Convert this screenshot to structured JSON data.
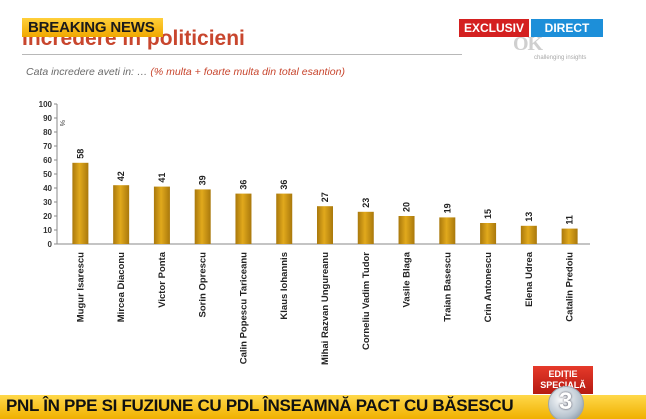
{
  "overlay": {
    "breaking": "BREAKING NEWS",
    "exclusiv": "EXCLUSIV",
    "direct": "DIRECT",
    "logo": "OK",
    "logo_tagline": "challenging insights",
    "edition_line1": "EDIȚIE",
    "edition_line2": "SPECIALĂ",
    "ticker": "PNL ÎN PPE SI FUZIUNE CU PDL ÎNSEAMNĂ PACT CU BĂSESCU",
    "channel_number": "3"
  },
  "colors": {
    "bar": "#e1a91c",
    "bar_dark": "#a9780c",
    "title": "#c8462e",
    "breaking": "#f5b700",
    "exclusiv": "#d42020",
    "direct": "#1d8fd9"
  },
  "chart_data": {
    "type": "bar",
    "title": "Incredere in politicieni",
    "subtitle_lead": "Cata incredere aveti in: …",
    "subtitle_paren": "(% multa + foarte multa din  total esantion)",
    "ylabel": "%",
    "ylim": [
      0,
      100
    ],
    "yticks": [
      0,
      10,
      20,
      30,
      40,
      50,
      60,
      70,
      80,
      90,
      100
    ],
    "grid": false,
    "legend": "none",
    "categories": [
      "Mugur Isarescu",
      "Mircea Diaconu",
      "Victor Ponta",
      "Sorin Oprescu",
      "Calin Popescu Tariceanu",
      "Klaus Iohannis",
      "Mihai Razvan Ungureanu",
      "Corneliu Vadim Tudor",
      "Vasile Blaga",
      "Traian Basescu",
      "Crin Antonescu",
      "Elena Udrea",
      "Catalin Predoiu"
    ],
    "values": [
      58,
      42,
      41,
      39,
      36,
      36,
      27,
      23,
      20,
      19,
      15,
      13,
      11
    ]
  }
}
